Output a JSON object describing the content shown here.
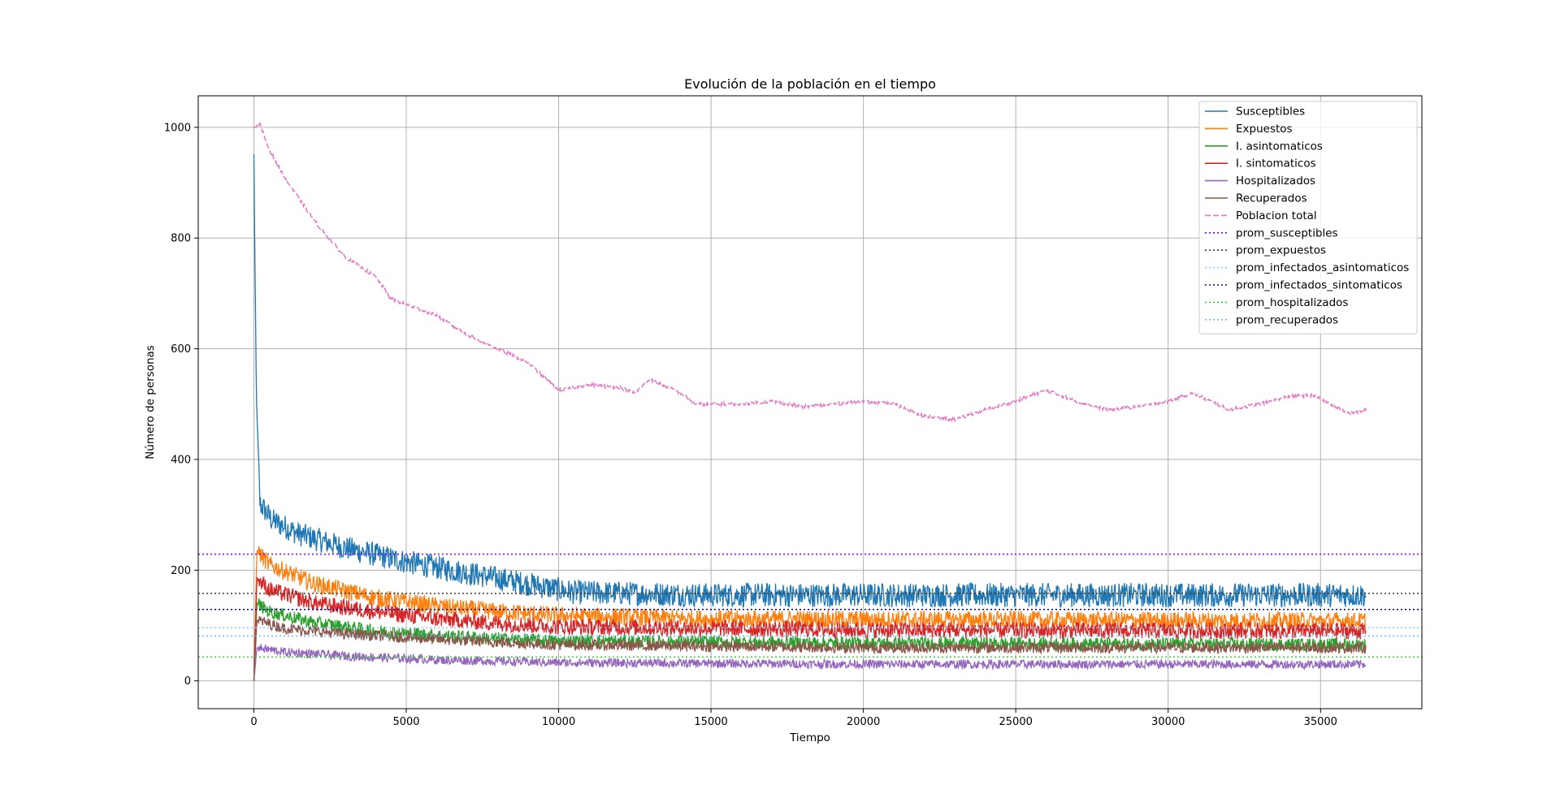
{
  "chart_data": {
    "type": "line",
    "title": "Evolución de la población en el tiempo",
    "xlabel": "Tiempo",
    "ylabel": "Número de personas",
    "xlim": [
      -1825,
      38325
    ],
    "ylim": [
      -50.3,
      1057
    ],
    "xticks": [
      0,
      5000,
      10000,
      15000,
      20000,
      25000,
      30000,
      35000
    ],
    "xtick_labels": [
      "0",
      "5000",
      "10000",
      "15000",
      "20000",
      "25000",
      "30000",
      "35000"
    ],
    "yticks": [
      0,
      200,
      400,
      600,
      800,
      1000
    ],
    "ytick_labels": [
      "0",
      "200",
      "400",
      "600",
      "800",
      "1000"
    ],
    "grid": true,
    "legend_position": "top-right",
    "series": [
      {
        "name": "Susceptibles",
        "color": "#1f77b4",
        "style": "solid",
        "kind": "noisy",
        "points": [
          [
            0,
            950
          ],
          [
            80,
            520
          ],
          [
            200,
            320
          ],
          [
            600,
            290
          ],
          [
            1500,
            265
          ],
          [
            3000,
            240
          ],
          [
            5000,
            215
          ],
          [
            7000,
            195
          ],
          [
            9000,
            175
          ],
          [
            10500,
            160
          ],
          [
            15000,
            155
          ],
          [
            20000,
            155
          ],
          [
            25000,
            155
          ],
          [
            30000,
            155
          ],
          [
            36500,
            155
          ]
        ],
        "noise": 22
      },
      {
        "name": "Expuestos",
        "color": "#ff7f0e",
        "style": "solid",
        "kind": "noisy",
        "points": [
          [
            0,
            0
          ],
          [
            100,
            235
          ],
          [
            500,
            210
          ],
          [
            2000,
            175
          ],
          [
            4000,
            150
          ],
          [
            6000,
            135
          ],
          [
            8000,
            125
          ],
          [
            10000,
            118
          ],
          [
            15000,
            112
          ],
          [
            25000,
            110
          ],
          [
            36500,
            108
          ]
        ],
        "noise": 16
      },
      {
        "name": "I. asintomaticos",
        "color": "#2ca02c",
        "style": "solid",
        "kind": "noisy",
        "points": [
          [
            0,
            0
          ],
          [
            100,
            140
          ],
          [
            500,
            125
          ],
          [
            2000,
            105
          ],
          [
            4000,
            90
          ],
          [
            6000,
            82
          ],
          [
            8000,
            76
          ],
          [
            10000,
            72
          ],
          [
            20000,
            68
          ],
          [
            36500,
            65
          ]
        ],
        "noise": 12
      },
      {
        "name": "I. sintomaticos",
        "color": "#d62728",
        "style": "solid",
        "kind": "noisy",
        "points": [
          [
            0,
            0
          ],
          [
            100,
            185
          ],
          [
            500,
            165
          ],
          [
            2000,
            140
          ],
          [
            4000,
            125
          ],
          [
            6000,
            112
          ],
          [
            8000,
            104
          ],
          [
            10000,
            98
          ],
          [
            20000,
            92
          ],
          [
            36500,
            90
          ]
        ],
        "noise": 15
      },
      {
        "name": "Hospitalizados",
        "color": "#9467bd",
        "style": "solid",
        "kind": "noisy",
        "points": [
          [
            0,
            0
          ],
          [
            100,
            60
          ],
          [
            1000,
            52
          ],
          [
            3000,
            45
          ],
          [
            6000,
            38
          ],
          [
            10000,
            33
          ],
          [
            20000,
            30
          ],
          [
            36500,
            30
          ]
        ],
        "noise": 8
      },
      {
        "name": "Recuperados",
        "color": "#8c564b",
        "style": "solid",
        "kind": "noisy",
        "points": [
          [
            0,
            0
          ],
          [
            100,
            110
          ],
          [
            1000,
            95
          ],
          [
            3000,
            85
          ],
          [
            6000,
            75
          ],
          [
            10000,
            65
          ],
          [
            20000,
            60
          ],
          [
            36500,
            60
          ]
        ],
        "noise": 10
      },
      {
        "name": "Poblacion total",
        "color": "#e377c2",
        "style": "dashed",
        "kind": "smooth",
        "points": [
          [
            0,
            1000
          ],
          [
            200,
            1005
          ],
          [
            500,
            960
          ],
          [
            1000,
            910
          ],
          [
            2000,
            830
          ],
          [
            3000,
            765
          ],
          [
            4000,
            730
          ],
          [
            4500,
            690
          ],
          [
            5000,
            680
          ],
          [
            6000,
            660
          ],
          [
            7000,
            625
          ],
          [
            8000,
            600
          ],
          [
            9000,
            575
          ],
          [
            10000,
            525
          ],
          [
            11000,
            535
          ],
          [
            12000,
            530
          ],
          [
            12500,
            520
          ],
          [
            13000,
            545
          ],
          [
            14000,
            520
          ],
          [
            14500,
            500
          ],
          [
            16000,
            500
          ],
          [
            17000,
            505
          ],
          [
            18000,
            495
          ],
          [
            19000,
            500
          ],
          [
            20000,
            505
          ],
          [
            21000,
            500
          ],
          [
            22000,
            478
          ],
          [
            23000,
            472
          ],
          [
            24000,
            490
          ],
          [
            25000,
            505
          ],
          [
            26000,
            525
          ],
          [
            27000,
            505
          ],
          [
            28000,
            490
          ],
          [
            29000,
            495
          ],
          [
            30000,
            505
          ],
          [
            30800,
            520
          ],
          [
            32000,
            490
          ],
          [
            33000,
            500
          ],
          [
            34000,
            515
          ],
          [
            34800,
            515
          ],
          [
            35500,
            495
          ],
          [
            36000,
            482
          ],
          [
            36500,
            490
          ]
        ],
        "noise": 3
      },
      {
        "name": "prom_susceptibles",
        "color": "#7f00ff",
        "style": "dotted",
        "kind": "hline",
        "value": 229
      },
      {
        "name": "prom_expuestos",
        "color": "#4b3621",
        "style": "dotted",
        "kind": "hline",
        "value": 158
      },
      {
        "name": "prom_infectados_asintomaticos",
        "color": "#87cefa",
        "style": "dotted",
        "kind": "hline",
        "value": 96
      },
      {
        "name": "prom_infectados_sintomaticos",
        "color": "#000080",
        "style": "dotted",
        "kind": "hline",
        "value": 129
      },
      {
        "name": "prom_hospitalizados",
        "color": "#32cd32",
        "style": "dotted",
        "kind": "hline",
        "value": 43
      },
      {
        "name": "prom_recuperados",
        "color": "#6fb8ff",
        "style": "dotted",
        "kind": "hline",
        "value": 81
      }
    ]
  }
}
